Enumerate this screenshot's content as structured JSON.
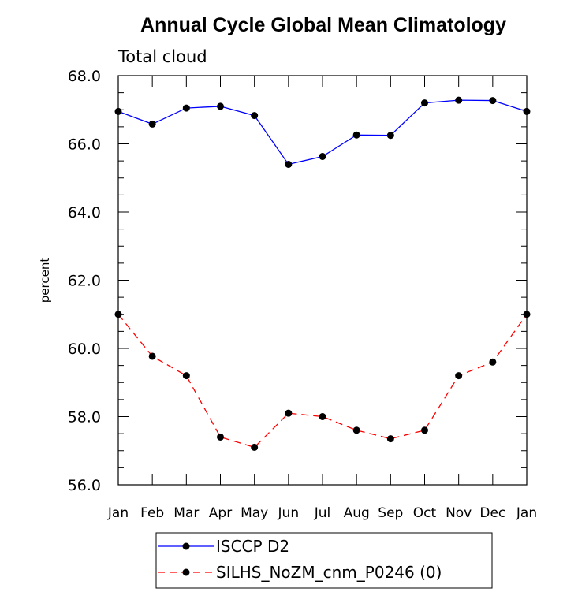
{
  "chart_data": {
    "type": "line",
    "title": "Annual Cycle Global Mean Climatology",
    "subtitle": "Total cloud",
    "xlabel": "",
    "ylabel": "percent",
    "ylim": [
      56.0,
      68.0
    ],
    "yticks": [
      "56.0",
      "58.0",
      "60.0",
      "62.0",
      "64.0",
      "66.0",
      "68.0"
    ],
    "categories": [
      "Jan",
      "Feb",
      "Mar",
      "Apr",
      "May",
      "Jun",
      "Jul",
      "Aug",
      "Sep",
      "Oct",
      "Nov",
      "Dec",
      "Jan"
    ],
    "grid": false,
    "legend_position": "bottom",
    "series": [
      {
        "name": "ISCCP D2",
        "color": "#0000ff",
        "dash": "solid",
        "values": [
          66.95,
          66.58,
          67.05,
          67.1,
          66.83,
          65.4,
          65.63,
          66.26,
          66.25,
          67.2,
          67.28,
          67.27,
          66.95
        ]
      },
      {
        "name": "SILHS_NoZM_cnm_P0246 (0)",
        "color": "#ff0000",
        "dash": "dashed",
        "values": [
          61.0,
          59.77,
          59.2,
          57.4,
          57.1,
          58.1,
          58.0,
          57.6,
          57.35,
          57.6,
          59.2,
          59.6,
          61.0
        ]
      }
    ]
  }
}
